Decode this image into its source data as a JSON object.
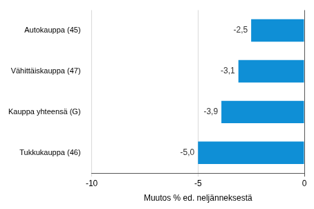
{
  "chart_data": {
    "type": "bar",
    "orientation": "horizontal",
    "categories": [
      "Autokauppa (45)",
      "Vähittäiskauppa (47)",
      "Kauppa yhteensä (G)",
      "Tukkukauppa (46)"
    ],
    "values": [
      -2.5,
      -3.1,
      -3.9,
      -5.0
    ],
    "value_labels": [
      "-2,5",
      "-3,1",
      "-3,9",
      "-5,0"
    ],
    "data_labels": true,
    "color": "#0f8fd6",
    "x_label": "Muutos % ed. neljänneksestä",
    "xlim": [
      -10,
      0
    ],
    "xticks": [
      -10,
      -5,
      0
    ],
    "grid": true
  }
}
